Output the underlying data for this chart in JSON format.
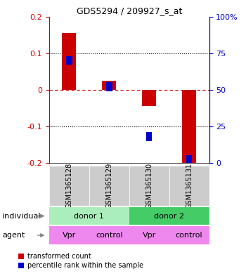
{
  "title": "GDS5294 / 209927_s_at",
  "samples": [
    "GSM1365128",
    "GSM1365129",
    "GSM1365130",
    "GSM1365131"
  ],
  "red_values": [
    0.155,
    0.025,
    -0.045,
    -0.205
  ],
  "blue_values_pct": [
    70,
    52,
    18,
    2
  ],
  "ylim_left": [
    -0.2,
    0.2
  ],
  "ylim_right": [
    0,
    100
  ],
  "yticks_left": [
    -0.2,
    -0.1,
    0.0,
    0.1,
    0.2
  ],
  "yticks_right": [
    0,
    25,
    50,
    75,
    100
  ],
  "ytick_labels_left": [
    "-0.2",
    "-0.1",
    "0",
    "0.1",
    "0.2"
  ],
  "ytick_labels_right": [
    "0",
    "25",
    "50",
    "75",
    "100%"
  ],
  "bar_width": 0.35,
  "blue_bar_width": 0.15,
  "red_color": "#cc0000",
  "blue_color": "#0000cc",
  "individual_labels": [
    "donor 1",
    "donor 2"
  ],
  "individual_colors": [
    "#aaeebb",
    "#44cc66"
  ],
  "agent_labels": [
    "Vpr",
    "control",
    "Vpr",
    "control"
  ],
  "agent_color": "#ee88ee",
  "gsm_bg_color": "#cccccc",
  "legend_red_label": "transformed count",
  "legend_blue_label": "percentile rank within the sample",
  "row_label_individual": "individual",
  "row_label_agent": "agent",
  "left_axis_color": "#cc0000",
  "right_axis_color": "#0000cc",
  "arrow_color": "#888888"
}
